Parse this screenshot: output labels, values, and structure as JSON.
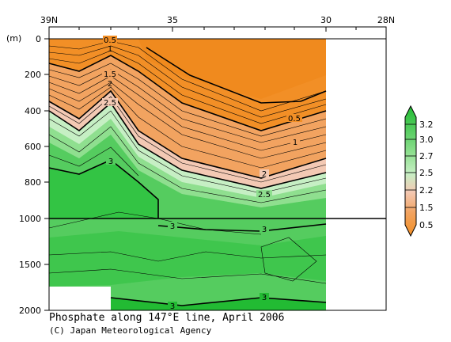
{
  "chart_data": {
    "type": "heatmap",
    "title": "Phosphate along 147°E line, April 2006",
    "credit": "(C) Japan Meteorological Agency",
    "x_ticks": [
      "39N",
      "35",
      "30",
      "28N"
    ],
    "y_unit": "(m)",
    "y_ticks_upper": [
      "0",
      "200",
      "400",
      "600",
      "800",
      "1000"
    ],
    "y_ticks_lower": [
      "1500",
      "2000"
    ],
    "y_scale": "split: linear 0-1000 m upper panel, 1000-2000 m compressed lower panel",
    "contour_labels": [
      "0.5",
      "1",
      "1.5",
      "2",
      "2.5",
      "0.5",
      "1",
      "2",
      "2.5",
      "3",
      "3",
      "3",
      "3",
      "3"
    ],
    "colorbar": {
      "labels": [
        "3.2",
        "3.0",
        "2.7",
        "2.5",
        "2.2",
        "1.5",
        "0.5"
      ],
      "colors": [
        "#22bb33",
        "#55cc5f",
        "#8fdf8f",
        "#c6efc4",
        "#f3c9b4",
        "#f2a360",
        "#f28f26"
      ]
    },
    "colors": {
      "orange_low": "#f28f26",
      "orange_mid": "#f2a360",
      "salmon": "#f3c9b4",
      "pale_green": "#c6efc4",
      "light_green": "#8fdf8f",
      "mid_green": "#55cc5f",
      "deep_green": "#22bb33"
    }
  }
}
